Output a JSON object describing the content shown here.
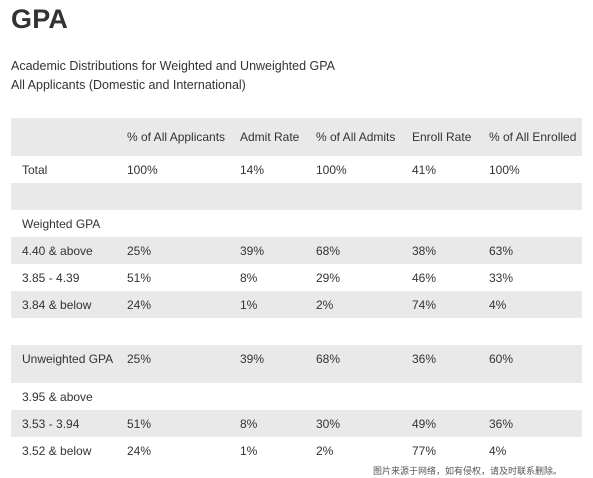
{
  "title": "GPA",
  "subtitle_1": "Academic Distributions for Weighted and Unweighted GPA",
  "subtitle_2": "All Applicants (Domestic and International)",
  "table": {
    "headers": [
      "",
      "% of All Applicants",
      "Admit Rate",
      "% of All Admits",
      "Enroll Rate",
      "% of All Enrolled"
    ],
    "rows": [
      {
        "cells": [
          "Total",
          "100%",
          "14%",
          "100%",
          "41%",
          "100%"
        ]
      },
      {
        "cells": [
          "",
          "",
          "",
          "",
          "",
          ""
        ]
      },
      {
        "cells": [
          "Weighted GPA",
          "",
          "",
          "",
          "",
          ""
        ]
      },
      {
        "cells": [
          "4.40 & above",
          "25%",
          "39%",
          "68%",
          "38%",
          "63%"
        ]
      },
      {
        "cells": [
          "3.85 - 4.39",
          "51%",
          "8%",
          "29%",
          "46%",
          "33%"
        ]
      },
      {
        "cells": [
          "3.84 & below",
          "24%",
          "1%",
          "2%",
          "74%",
          "4%"
        ]
      },
      {
        "cells": [
          "",
          "",
          "",
          "",
          "",
          ""
        ]
      },
      {
        "cells": [
          "Unweighted GPA",
          "25%",
          "39%",
          "68%",
          "36%",
          "60%"
        ]
      },
      {
        "cells": [
          "3.95 & above",
          "",
          "",
          "",
          "",
          ""
        ]
      },
      {
        "cells": [
          "3.53 - 3.94",
          "51%",
          "8%",
          "30%",
          "49%",
          "36%"
        ]
      },
      {
        "cells": [
          "3.52 & below",
          "24%",
          "1%",
          "2%",
          "77%",
          "4%"
        ]
      }
    ]
  },
  "watermark": "图片来源于网络，如有侵权，请及时联系删除。"
}
